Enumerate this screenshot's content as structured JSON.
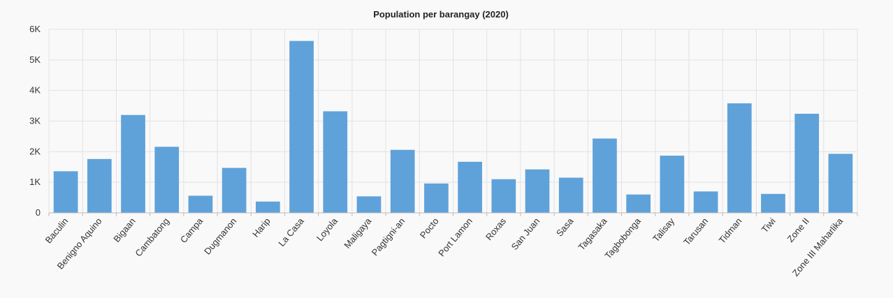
{
  "chart_data": {
    "type": "bar",
    "title": "Population per barangay (2020)",
    "xlabel": "",
    "ylabel": "",
    "ylim": [
      0,
      6000
    ],
    "yticks": [
      0,
      1000,
      2000,
      3000,
      4000,
      5000,
      6000
    ],
    "ytick_labels": [
      "0",
      "1K",
      "2K",
      "3K",
      "4K",
      "5K",
      "6K"
    ],
    "grid": true,
    "categories": [
      "Baculin",
      "Benigno Aquino",
      "Bigaan",
      "Cambatong",
      "Campa",
      "Dugmanon",
      "Harip",
      "La Casa",
      "Loyola",
      "Maligaya",
      "Pagtigni-an",
      "Pocto",
      "Port Lamon",
      "Roxas",
      "San Juan",
      "Sasa",
      "Tagasaka",
      "Tagbobonga",
      "Talisay",
      "Tarusan",
      "Tidman",
      "Tiwi",
      "Zone II",
      "Zone III Maharlika"
    ],
    "values": [
      1360,
      1760,
      3200,
      2160,
      560,
      1470,
      370,
      5620,
      3320,
      540,
      2060,
      960,
      1670,
      1100,
      1420,
      1150,
      2430,
      600,
      1870,
      700,
      3580,
      620,
      3240,
      1930
    ],
    "bar_color": "#5fa2da"
  }
}
